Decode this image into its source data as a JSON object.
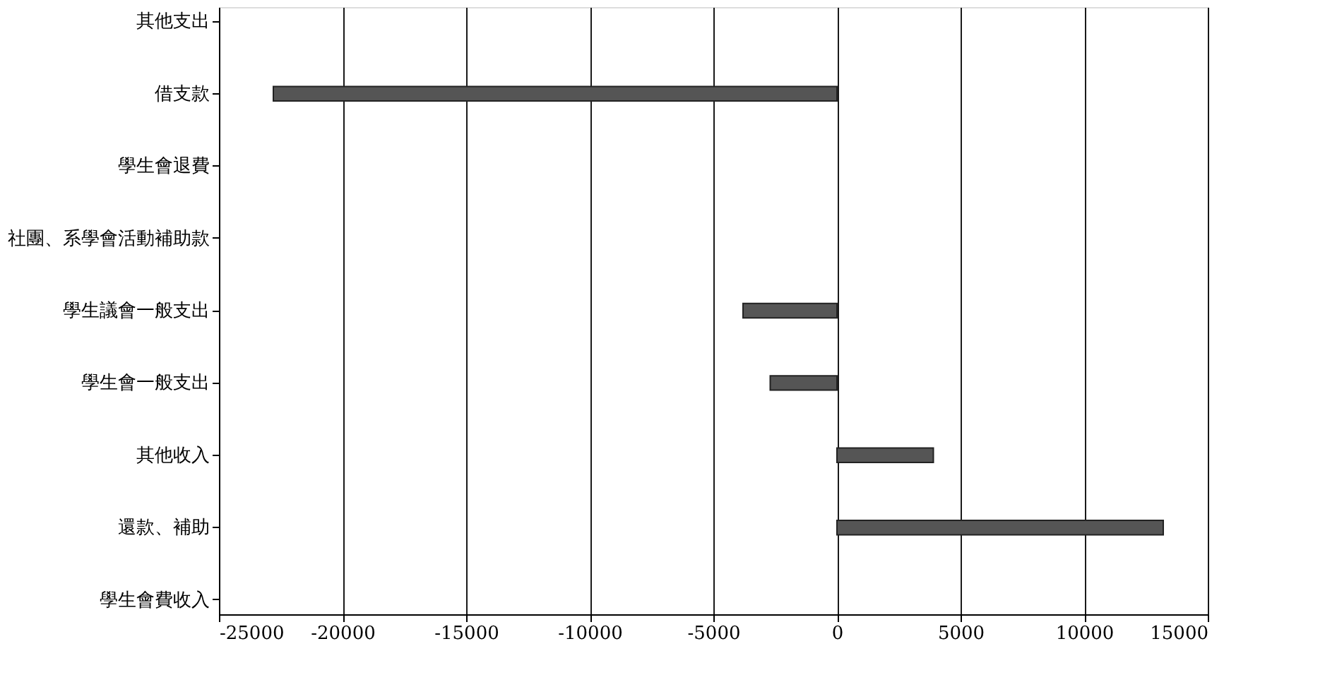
{
  "chart_data": {
    "type": "bar",
    "orientation": "horizontal",
    "categories": [
      "其他支出",
      "借支款",
      "學生會退費",
      "社團、系學會活動補助款",
      "學生議會一般支出",
      "學生會一般支出",
      "其他收入",
      "還款、補助",
      "學生會費收入"
    ],
    "values": [
      null,
      -22800,
      null,
      null,
      -3800,
      -2700,
      3900,
      13200,
      null
    ],
    "color": "#555555",
    "xlim": [
      -25000,
      15000
    ],
    "xticks": [
      -25000,
      -20000,
      -15000,
      -10000,
      -5000,
      0,
      5000,
      10000,
      15000
    ],
    "grid": "x"
  }
}
